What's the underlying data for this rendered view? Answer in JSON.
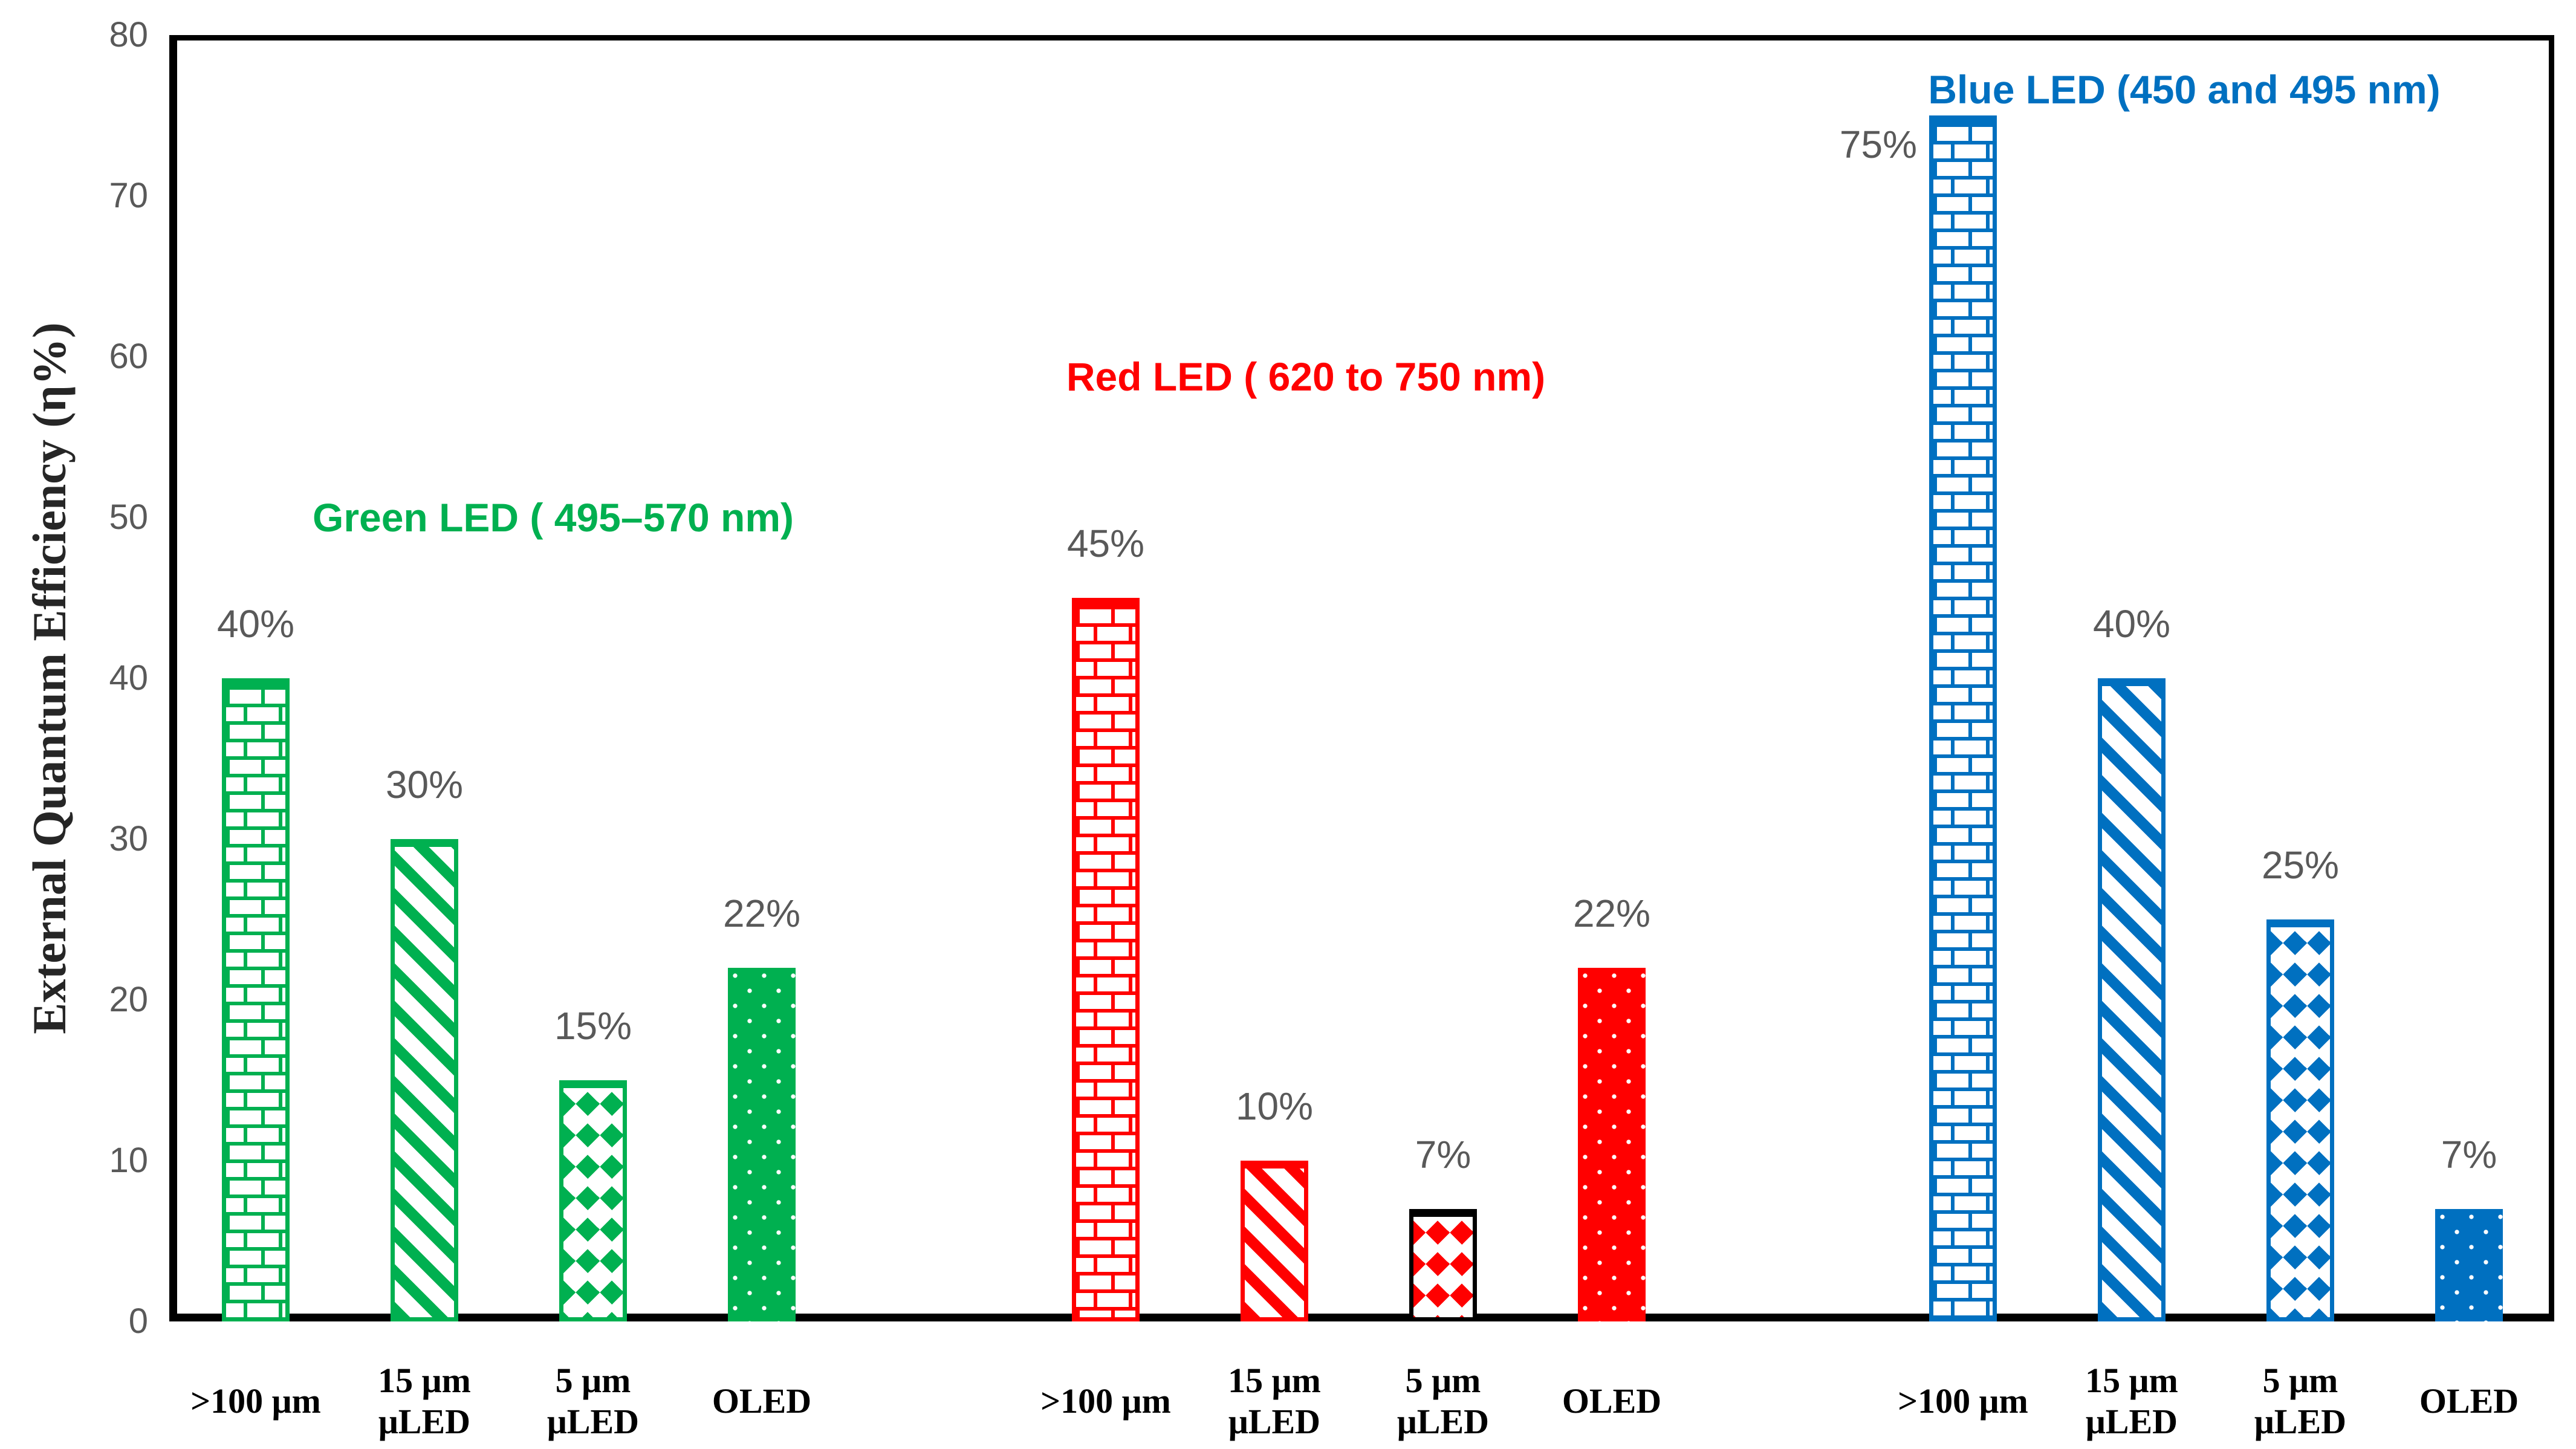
{
  "chart_data": {
    "type": "bar",
    "title": "",
    "xlabel": "",
    "ylabel": "External Quantum Efficiency (η%)",
    "ylim": [
      0,
      80
    ],
    "ytick_step": 10,
    "yticks": [
      "0",
      "10",
      "20",
      "30",
      "40",
      "50",
      "60",
      "70",
      "80"
    ],
    "grid": false,
    "legend_position": "none",
    "plot_border": true,
    "background": "#ffffff",
    "axis_color": "#000000",
    "tick_label_color": "#595959",
    "data_label_color": "#595959",
    "categories": [
      {
        "label": ">100 μm",
        "l1": ">100 μm",
        "l2": ""
      },
      {
        "label": "15 μm μLED",
        "l1": "15 μm",
        "l2": "μLED"
      },
      {
        "label": "5 μm μLED",
        "l1": "5 μm",
        "l2": "μLED"
      },
      {
        "label": "OLED",
        "l1": "OLED",
        "l2": ""
      }
    ],
    "bar_patterns": [
      "brick-hatch",
      "diagonal-stripes",
      "diamond-checker",
      "solid-with-white-dots"
    ],
    "series": [
      {
        "name": "Green LED ( 495–570 nm)",
        "color": "#00B050",
        "values": [
          40,
          30,
          15,
          22
        ],
        "data_labels": [
          "40%",
          "30%",
          "15%",
          "22%"
        ]
      },
      {
        "name": "Red LED ( 620 to 750 nm)",
        "color": "#FF0000",
        "values": [
          45,
          10,
          7,
          22
        ],
        "data_labels": [
          "45%",
          "10%",
          "7%",
          "22%"
        ],
        "note": "5 μm μLED bar drawn with black outline"
      },
      {
        "name": "Blue LED (450 and 495 nm)",
        "color": "#0070C0",
        "values": [
          75,
          40,
          25,
          7
        ],
        "data_labels": [
          "75%",
          "40%",
          "25%",
          "7%"
        ],
        "note": "75% label placed left of bar"
      }
    ]
  }
}
